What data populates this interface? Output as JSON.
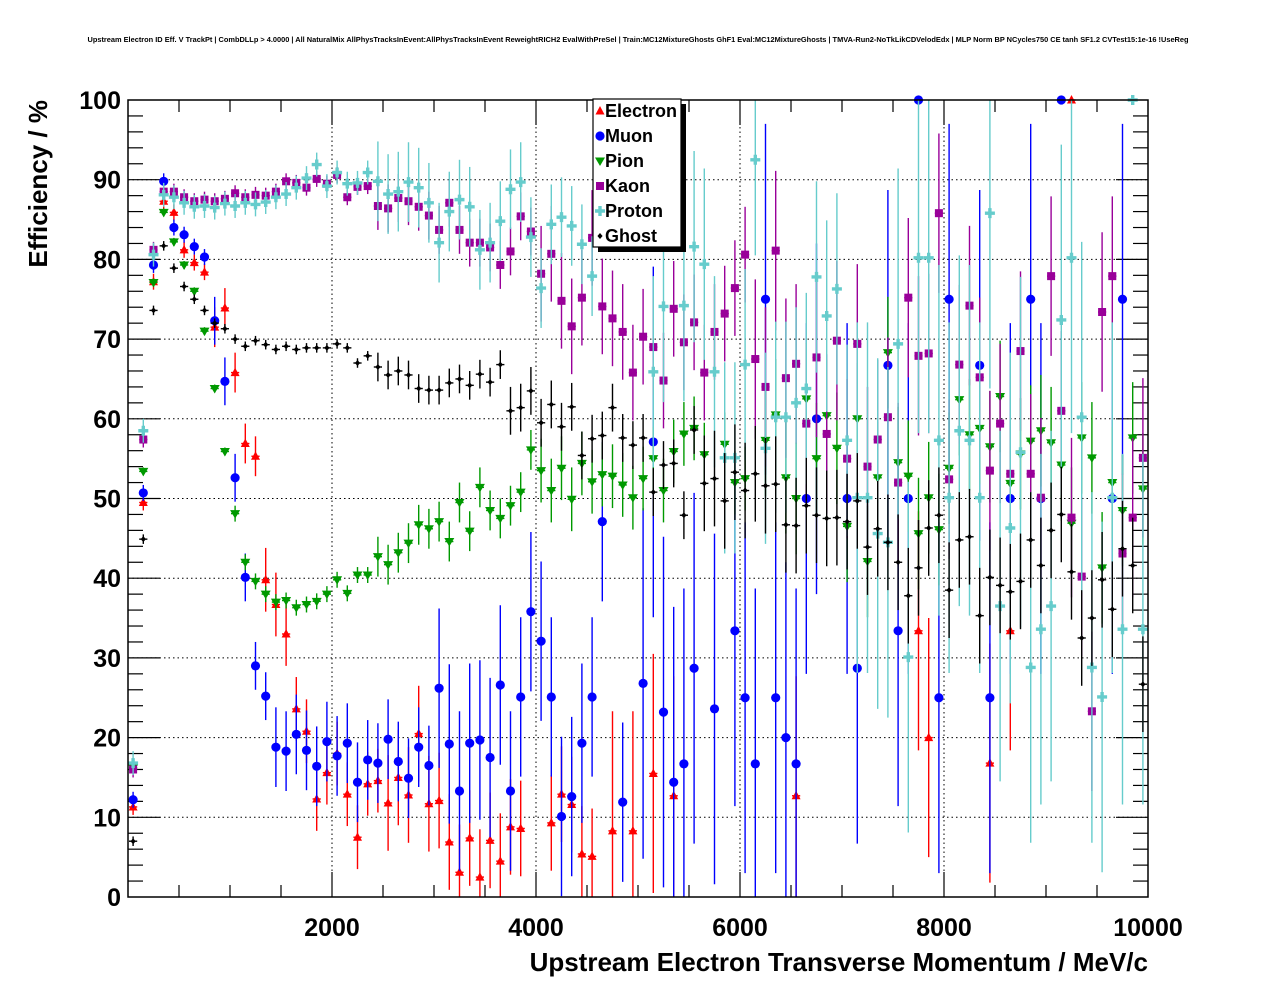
{
  "chart_data": {
    "type": "scatter",
    "title": "Upstream Electron ID Eff. V TrackPt | CombDLLp > 4.0000 | All NaturalMix AllPhysTracksInEvent:AllPhysTracksInEvent ReweightRICH2 EvalWithPreSel | Train:MC12MixtureGhosts GhF1 Eval:MC12MixtureGhosts | TMVA-Run2-NoTkLikCDVelodEdx | MLP Norm BP NCycles750 CE tanh SF1.2 CVTest15:1e-16 !UseReg",
    "xlabel": "Upstream Electron Transverse Momentum / MeV/c",
    "ylabel": "Efficiency / %",
    "xlim": [
      0,
      10000
    ],
    "ylim": [
      0,
      100
    ],
    "bin_width": 100,
    "grid": true,
    "legend_position": "top-center",
    "xticks": [
      "2000",
      "4000",
      "6000",
      "8000",
      "10000"
    ],
    "xtick_values": [
      2000,
      4000,
      6000,
      8000,
      10000
    ],
    "yticks": [
      "0",
      "10",
      "20",
      "30",
      "40",
      "50",
      "60",
      "70",
      "80",
      "90",
      "100"
    ],
    "ytick_values": [
      0,
      10,
      20,
      30,
      40,
      50,
      60,
      70,
      80,
      90,
      100
    ],
    "series": [
      {
        "name": "Electron",
        "color": "#ff0000",
        "marker": "triangle-up",
        "err_bands": [
          [
            0,
            7,
            1
          ],
          [
            8,
            12,
            2.5
          ],
          [
            13,
            24,
            4
          ],
          [
            25,
            45,
            6
          ],
          [
            46,
            91,
            15
          ],
          [
            92,
            92,
            0
          ],
          [
            93,
            99,
            15
          ]
        ],
        "values": [
          11.3,
          49.5,
          77.2,
          87.3,
          85.9,
          81.2,
          79.6,
          78.4,
          71.5,
          73.9,
          65.8,
          56.9,
          55.3,
          39.8,
          36.7,
          33.0,
          23.6,
          20.8,
          12.3,
          15.6,
          18.0,
          12.9,
          7.5,
          14.2,
          14.6,
          11.8,
          15.0,
          12.8,
          20.5,
          11.7,
          12.1,
          6.9,
          3.1,
          7.4,
          2.5,
          7.1,
          4.5,
          8.8,
          8.6,
          null,
          null,
          9.3,
          12.9,
          11.6,
          5.4,
          5.1,
          null,
          8.3,
          null,
          8.3,
          null,
          15.5,
          null,
          12.7,
          null,
          null,
          null,
          null,
          null,
          null,
          null,
          null,
          null,
          null,
          null,
          12.7,
          null,
          null,
          null,
          null,
          null,
          null,
          null,
          null,
          null,
          null,
          null,
          33.4,
          20.0,
          null,
          null,
          null,
          null,
          null,
          16.8,
          null,
          33.4,
          null,
          null,
          null,
          null,
          null,
          100,
          null,
          null,
          null,
          null,
          null,
          null,
          null
        ]
      },
      {
        "name": "Muon",
        "color": "#0000ff",
        "marker": "circle",
        "err_bands": [
          [
            0,
            7,
            1
          ],
          [
            8,
            13,
            3
          ],
          [
            14,
            29,
            5
          ],
          [
            30,
            49,
            10
          ],
          [
            50,
            76,
            22
          ],
          [
            77,
            77,
            0
          ],
          [
            78,
            90,
            22
          ],
          [
            91,
            91,
            0
          ],
          [
            92,
            99,
            22
          ]
        ],
        "values": [
          12.2,
          50.7,
          79.3,
          89.8,
          84.0,
          83.1,
          81.6,
          80.3,
          72.3,
          64.7,
          52.6,
          40.1,
          29.0,
          25.2,
          18.8,
          18.3,
          20.4,
          18.4,
          16.4,
          19.5,
          17.7,
          19.3,
          14.4,
          17.2,
          16.8,
          19.8,
          17.0,
          14.9,
          18.8,
          16.5,
          26.2,
          19.2,
          13.3,
          19.3,
          19.7,
          17.5,
          26.6,
          13.3,
          25.1,
          35.8,
          32.1,
          25.1,
          10.1,
          12.6,
          19.3,
          25.1,
          47.1,
          null,
          11.9,
          null,
          26.8,
          57.1,
          23.2,
          14.4,
          16.7,
          28.7,
          null,
          23.6,
          null,
          33.4,
          25.0,
          16.7,
          75.0,
          25.0,
          20.0,
          16.7,
          50.0,
          60.0,
          null,
          null,
          50.0,
          28.7,
          null,
          null,
          66.7,
          33.4,
          50.0,
          100,
          null,
          25.0,
          75.0,
          null,
          null,
          66.7,
          25.0,
          null,
          50.0,
          null,
          75.0,
          50.0,
          null,
          100,
          null,
          null,
          null,
          null,
          50.0,
          75.0,
          null,
          null
        ]
      },
      {
        "name": "Pion",
        "color": "#009900",
        "marker": "triangle-down",
        "err_bands": [
          [
            0,
            9,
            0.5
          ],
          [
            10,
            23,
            1
          ],
          [
            24,
            39,
            2.5
          ],
          [
            40,
            60,
            4
          ],
          [
            61,
            99,
            7
          ]
        ],
        "values": [
          16.2,
          53.4,
          77.1,
          85.9,
          82.2,
          79.3,
          76.0,
          71.0,
          63.8,
          55.9,
          48.1,
          42.0,
          39.6,
          38.0,
          37.0,
          37.2,
          36.3,
          36.7,
          37.1,
          38.0,
          39.8,
          38.1,
          40.4,
          40.4,
          42.7,
          41.7,
          43.2,
          44.4,
          46.7,
          46.2,
          47.1,
          44.6,
          49.5,
          45.9,
          51.4,
          48.5,
          47.5,
          49.1,
          50.8,
          56.1,
          53.5,
          51.0,
          53.8,
          49.9,
          54.4,
          52.1,
          53.0,
          52.8,
          51.7,
          50.1,
          52.5,
          55.0,
          51.0,
          55.9,
          58.1,
          58.8,
          55.5,
          null,
          56.8,
          52.0,
          52.5,
          null,
          57.3,
          60.5,
          52.6,
          50.0,
          62.5,
          55.0,
          60.4,
          56.3,
          46.5,
          60.0,
          42.1,
          52.6,
          68.3,
          54.5,
          52.8,
          45.6,
          50.1,
          46.1,
          53.8,
          62.4,
          58.0,
          58.8,
          56.5,
          62.8,
          51.9,
          55.6,
          57.2,
          58.5,
          57.0,
          54.2,
          46.9,
          57.6,
          55.1,
          41.3,
          52.0,
          48.5,
          57.6,
          51.2
        ]
      },
      {
        "name": "Kaon",
        "color": "#990099",
        "marker": "square",
        "err_bands": [
          [
            0,
            23,
            1
          ],
          [
            24,
            39,
            3
          ],
          [
            40,
            60,
            6
          ],
          [
            61,
            99,
            10
          ]
        ],
        "values": [
          16.0,
          57.4,
          81.2,
          88.5,
          88.5,
          87.8,
          87.3,
          87.5,
          87.3,
          87.6,
          88.3,
          87.8,
          88.1,
          88.0,
          88.5,
          89.8,
          89.6,
          89.0,
          90.1,
          89.5,
          90.6,
          87.8,
          89.1,
          89.2,
          86.7,
          86.4,
          87.7,
          87.3,
          86.6,
          85.5,
          83.7,
          87.1,
          83.7,
          82.1,
          82.1,
          81.5,
          79.3,
          81.0,
          85.4,
          83.5,
          78.2,
          80.7,
          74.8,
          71.6,
          75.2,
          82.7,
          74.1,
          72.6,
          70.9,
          65.8,
          70.3,
          69.0,
          64.8,
          73.8,
          69.6,
          72.1,
          65.8,
          70.9,
          73.2,
          76.4,
          80.6,
          67.5,
          64.0,
          81.1,
          65.1,
          66.9,
          59.4,
          67.7,
          58.1,
          69.8,
          55.0,
          69.4,
          54.0,
          57.4,
          60.2,
          52.0,
          75.2,
          67.9,
          68.2,
          85.8,
          52.4,
          66.8,
          74.2,
          65.2,
          53.5,
          59.4,
          53.1,
          68.5,
          53.1,
          50.1,
          77.9,
          61.0,
          47.6,
          40.2,
          23.3,
          73.4,
          77.9,
          43.1,
          47.6,
          55.1
        ]
      },
      {
        "name": "Proton",
        "color": "#66cccc",
        "marker": "cross",
        "err_bands": [
          [
            0,
            23,
            1.5
          ],
          [
            24,
            45,
            5
          ],
          [
            46,
            70,
            12
          ],
          [
            71,
            97,
            22
          ],
          [
            98,
            98,
            0
          ],
          [
            99,
            99,
            22
          ]
        ],
        "values": [
          16.8,
          58.5,
          80.6,
          88.1,
          87.8,
          87.1,
          86.6,
          86.7,
          86.5,
          87.0,
          86.7,
          87.1,
          86.9,
          87.2,
          87.8,
          88.2,
          89.0,
          90.2,
          91.9,
          89.2,
          90.9,
          89.5,
          89.6,
          90.9,
          89.8,
          88.2,
          88.5,
          89.7,
          89.0,
          87.1,
          82.1,
          86.0,
          87.5,
          86.6,
          81.2,
          82.1,
          84.8,
          88.8,
          89.7,
          82.8,
          76.4,
          84.4,
          85.3,
          84.2,
          81.9,
          77.9,
          null,
          null,
          null,
          null,
          null,
          65.9,
          74.1,
          null,
          74.2,
          81.6,
          79.4,
          65.9,
          55.1,
          55.1,
          66.8,
          92.5,
          56.3,
          60.2,
          60.2,
          62.0,
          63.8,
          77.8,
          72.9,
          76.3,
          57.3,
          50.1,
          50.1,
          45.6,
          44.5,
          69.4,
          30.1,
          80.2,
          80.2,
          57.3,
          50.1,
          58.5,
          57.3,
          50.1,
          85.8,
          36.5,
          46.3,
          55.8,
          28.8,
          33.6,
          36.5,
          72.4,
          80.2,
          60.2,
          28.8,
          25.1,
          50.1,
          33.6,
          100,
          33.6
        ]
      },
      {
        "name": "Ghost",
        "color": "#000000",
        "marker": "dot",
        "err_bands": [
          [
            0,
            23,
            0.6
          ],
          [
            24,
            36,
            1.8
          ],
          [
            37,
            55,
            3
          ],
          [
            56,
            99,
            6
          ]
        ],
        "values": [
          7.0,
          44.9,
          73.6,
          81.7,
          78.9,
          76.6,
          75.0,
          73.6,
          72.0,
          71.3,
          70.0,
          69.1,
          69.8,
          69.3,
          68.7,
          69.1,
          68.7,
          68.9,
          68.9,
          68.9,
          69.4,
          68.9,
          67.0,
          67.9,
          66.5,
          65.5,
          66.0,
          65.5,
          63.8,
          63.6,
          63.6,
          64.5,
          65.0,
          64.2,
          65.6,
          64.6,
          66.8,
          61.0,
          61.4,
          63.5,
          59.5,
          61.8,
          59.0,
          61.5,
          55.4,
          57.5,
          57.9,
          61.4,
          57.6,
          56.7,
          57.6,
          50.8,
          54.2,
          54.4,
          47.9,
          58.6,
          51.9,
          52.5,
          49.7,
          53.3,
          51.0,
          53.1,
          51.6,
          51.8,
          46.7,
          46.6,
          49.1,
          47.9,
          47.5,
          47.6,
          47.1,
          49.7,
          43.9,
          46.2,
          44.5,
          42.0,
          37.8,
          41.3,
          46.3,
          47.9,
          38.5,
          44.8,
          45.2,
          35.3,
          40.1,
          39.1,
          38.3,
          39.6,
          44.8,
          41.6,
          46.0,
          48.0,
          40.8,
          32.5,
          35.0,
          39.8,
          36.1,
          43.7,
          41.6,
          26.7
        ]
      }
    ]
  }
}
